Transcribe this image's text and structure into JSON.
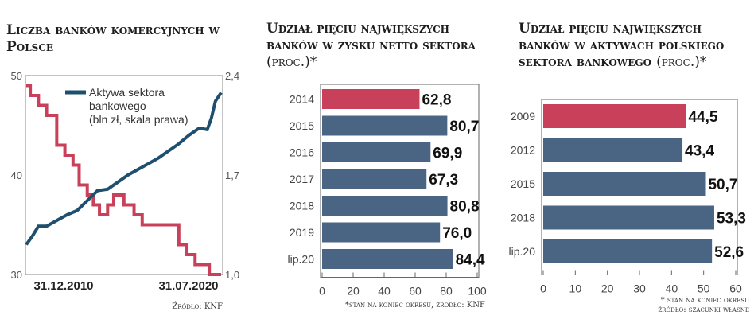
{
  "chart_data": [
    {
      "type": "line",
      "title": "Liczba banków komercyjnych w Polsce",
      "xlabels": [
        "31.12.2010",
        "31.07.2020"
      ],
      "yleft": {
        "ticks": [
          "50",
          "40",
          "30"
        ],
        "range": [
          30,
          50
        ]
      },
      "yright": {
        "ticks": [
          "2,4",
          "1,7",
          "1,0"
        ],
        "range": [
          1.0,
          2.4
        ]
      },
      "legend": "Aktywa sektora bankowego (bln zł, skala prawa)",
      "source": "Źródło: KNF",
      "series": [
        {
          "name": "Liczba banków komercyjnych",
          "axis": "left",
          "color": "#c9405a",
          "x": [
            2011.0,
            2011.2,
            2011.6,
            2012.0,
            2012.5,
            2012.9,
            2013.3,
            2013.6,
            2014.0,
            2014.3,
            2014.6,
            2015.0,
            2015.3,
            2015.5,
            2015.8,
            2016.3,
            2016.7,
            2017.2,
            2017.7,
            2018.5,
            2018.9,
            2019.3,
            2019.6,
            2020.0,
            2020.58
          ],
          "values": [
            49,
            48,
            47,
            46,
            43,
            42,
            41,
            39,
            38,
            37,
            36,
            37,
            38,
            38,
            37,
            36,
            35,
            35,
            35,
            33,
            32,
            31,
            31,
            30,
            30
          ]
        },
        {
          "name": "Aktywa sektora bankowego",
          "axis": "right",
          "color": "#1e4f6e",
          "x": [
            2011.0,
            2011.3,
            2011.6,
            2012.0,
            2012.5,
            2013.0,
            2013.5,
            2014.0,
            2014.5,
            2015.0,
            2015.5,
            2016.0,
            2016.5,
            2017.0,
            2017.5,
            2018.0,
            2018.5,
            2019.0,
            2019.5,
            2019.9,
            2020.1,
            2020.3,
            2020.58
          ],
          "values": [
            1.21,
            1.27,
            1.34,
            1.34,
            1.38,
            1.42,
            1.45,
            1.52,
            1.59,
            1.6,
            1.65,
            1.7,
            1.74,
            1.78,
            1.82,
            1.87,
            1.92,
            1.98,
            2.03,
            2.02,
            2.1,
            2.22,
            2.28
          ]
        }
      ]
    },
    {
      "type": "bar",
      "title": "Udział pięciu największych banków w zysku netto sektora",
      "title_unit": "(proc.)*",
      "categories": [
        "2014",
        "2015",
        "2016",
        "2017",
        "2018",
        "2019",
        "lip.20"
      ],
      "values": [
        62.8,
        80.7,
        69.9,
        67.3,
        80.8,
        76.0,
        84.4
      ],
      "labels": [
        "62,8",
        "80,7",
        "69,9",
        "67,3",
        "80,8",
        "76,0",
        "84,4"
      ],
      "highlight": 0,
      "xticks": [
        "0",
        "20",
        "40",
        "60",
        "80",
        "100"
      ],
      "xlim": [
        0,
        100
      ],
      "note": "*stan na koniec okresu, źródło: KNF"
    },
    {
      "type": "bar",
      "title": "Udział pięciu największych banków w aktywach polskiego sektora bankowego",
      "title_unit": "(proc.)*",
      "categories": [
        "2009",
        "2012",
        "2015",
        "2018",
        "lip.20"
      ],
      "values": [
        44.5,
        43.4,
        50.7,
        53.3,
        52.6
      ],
      "labels": [
        "44,5",
        "43,4",
        "50,7",
        "53,3",
        "52,6"
      ],
      "highlight": 0,
      "xticks": [
        "0",
        "10",
        "20",
        "30",
        "40",
        "50",
        "60"
      ],
      "xlim": [
        0,
        60
      ],
      "note": "* stan na koniec okresu",
      "note2": "źródło: szacunki własne"
    }
  ],
  "colors": {
    "red": "#c9405a",
    "blue": "#4a6483",
    "navy": "#1e4f6e"
  }
}
